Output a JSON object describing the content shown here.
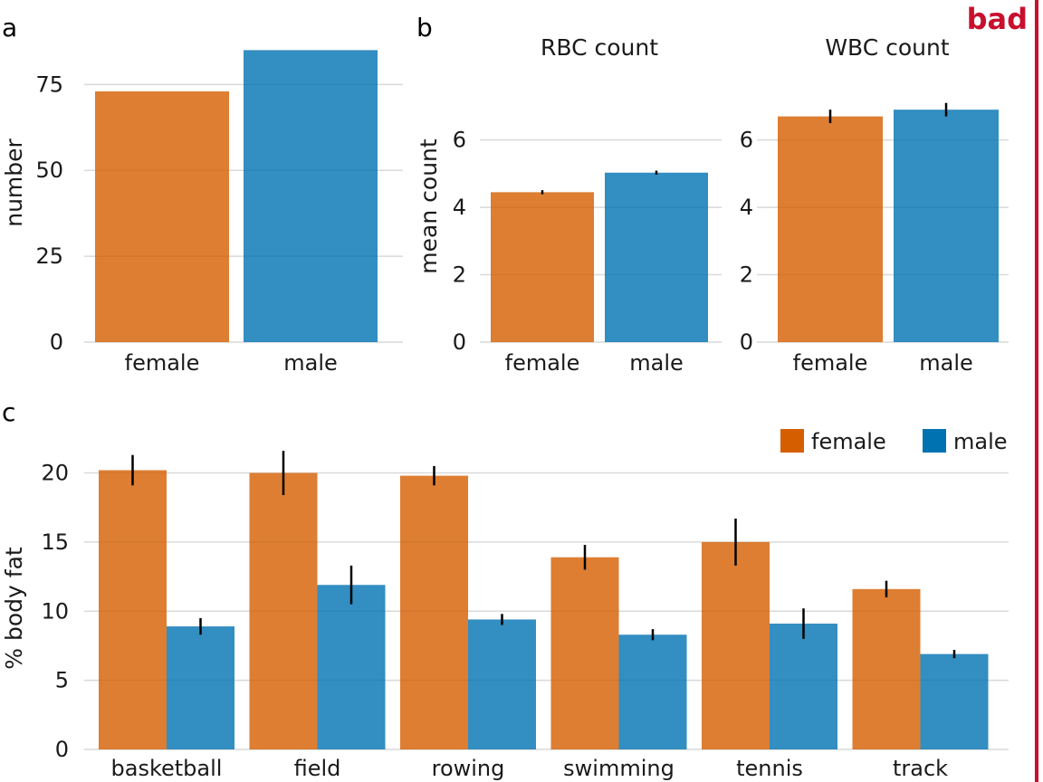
{
  "corner_label": "bad",
  "colors": {
    "female": "#D55E00",
    "male": "#0072B2",
    "bad": "#C8102E",
    "errorbar": "#000000"
  },
  "panels": {
    "a": "a",
    "b": "b",
    "c": "c"
  },
  "chart_data": [
    {
      "id": "a",
      "type": "bar",
      "categories": [
        "female",
        "male"
      ],
      "values": [
        73,
        85
      ],
      "ylabel": "number",
      "ylim": [
        0,
        88
      ],
      "yticks": [
        0,
        25,
        50,
        75
      ],
      "grid": "horizontal"
    },
    {
      "id": "b-rbc",
      "type": "bar",
      "title": "RBC count",
      "categories": [
        "female",
        "male"
      ],
      "values": [
        4.45,
        5.03
      ],
      "errors": [
        0.06,
        0.06
      ],
      "ylabel": "mean count",
      "ylim": [
        0,
        7.2
      ],
      "yticks": [
        0,
        2,
        4,
        6
      ],
      "grid": "horizontal"
    },
    {
      "id": "b-wbc",
      "type": "bar",
      "title": "WBC count",
      "categories": [
        "female",
        "male"
      ],
      "values": [
        6.7,
        6.9
      ],
      "errors": [
        0.2,
        0.2
      ],
      "ylabel": "",
      "ylim": [
        0,
        7.2
      ],
      "yticks": [
        0,
        2,
        4,
        6
      ],
      "grid": "horizontal"
    },
    {
      "id": "c",
      "type": "bar",
      "categories": [
        "basketball",
        "field",
        "rowing",
        "swimming",
        "tennis",
        "track"
      ],
      "series": [
        {
          "name": "female",
          "values": [
            20.2,
            20.0,
            19.8,
            13.9,
            15.0,
            11.6
          ],
          "errors": [
            1.1,
            1.6,
            0.7,
            0.9,
            1.7,
            0.6
          ]
        },
        {
          "name": "male",
          "values": [
            8.9,
            11.9,
            9.4,
            8.3,
            9.1,
            6.9
          ],
          "errors": [
            0.6,
            1.4,
            0.4,
            0.4,
            1.1,
            0.3
          ]
        }
      ],
      "ylabel": "% body fat",
      "ylim": [
        0,
        22
      ],
      "yticks": [
        0,
        5,
        10,
        15,
        20
      ],
      "legend": {
        "placement": "top-right",
        "items": [
          "female",
          "male"
        ]
      },
      "grid": "horizontal"
    }
  ]
}
